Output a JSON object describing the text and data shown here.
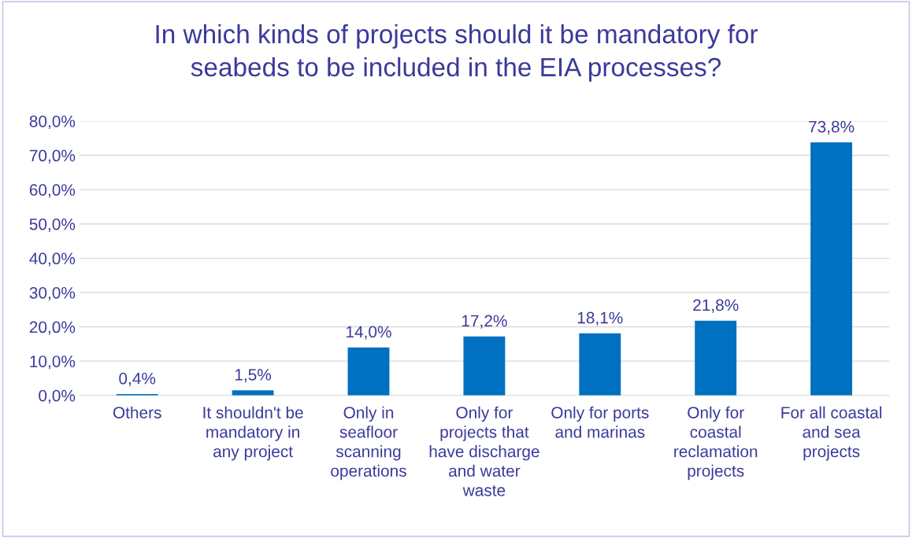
{
  "chart_data": {
    "type": "bar",
    "title": "In which kinds of projects should it be mandatory for\nseabeds to be included in the EIA processes?",
    "categories": [
      "Others",
      "It shouldn't be\nmandatory in\nany project",
      "Only in\nseafloor\nscanning\noperations",
      "Only for\nprojects that\nhave discharge\nand water\nwaste",
      "Only for ports\nand marinas",
      "Only for\ncoastal\nreclamation\nprojects",
      "For all coastal\nand sea\nprojects"
    ],
    "values": [
      0.4,
      1.5,
      14.0,
      17.2,
      18.1,
      21.8,
      73.8
    ],
    "value_labels": [
      "0,4%",
      "1,5%",
      "14,0%",
      "17,2%",
      "18,1%",
      "21,8%",
      "73,8%"
    ],
    "color": "#0070c0",
    "ylim": [
      0,
      80
    ],
    "yticks": [
      {
        "value": 0,
        "label": "0,0%"
      },
      {
        "value": 10,
        "label": "10,0%"
      },
      {
        "value": 20,
        "label": "20,0%"
      },
      {
        "value": 30,
        "label": "30,0%"
      },
      {
        "value": 40,
        "label": "40,0%"
      },
      {
        "value": 50,
        "label": "50,0%"
      },
      {
        "value": 60,
        "label": "60,0%"
      },
      {
        "value": 70,
        "label": "70,0%"
      },
      {
        "value": 80,
        "label": "80,0%"
      }
    ],
    "grid": "y",
    "legend": false
  }
}
